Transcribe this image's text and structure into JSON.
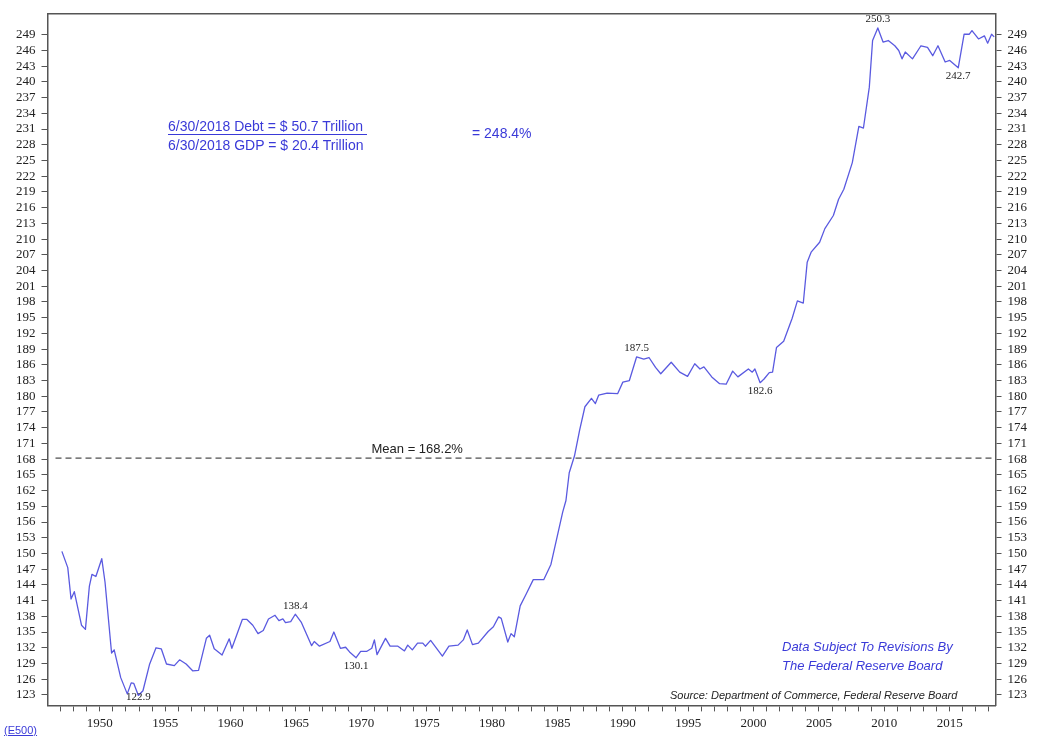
{
  "chart_data": {
    "type": "line",
    "x": [
      1947.1,
      1947.55,
      1947.8,
      1948.05,
      1948.6,
      1948.9,
      1949.2,
      1949.4,
      1949.7,
      1950.15,
      1950.4,
      1950.9,
      1951.1,
      1951.6,
      1952.1,
      1952.4,
      1952.6,
      1952.95,
      1953.3,
      1953.8,
      1954.3,
      1954.7,
      1955.1,
      1955.7,
      1956.1,
      1956.6,
      1957.1,
      1957.55,
      1958.15,
      1958.4,
      1958.75,
      1959.35,
      1959.9,
      1960.1,
      1960.9,
      1961.25,
      1961.7,
      1962.1,
      1962.5,
      1962.9,
      1963.4,
      1963.7,
      1964.0,
      1964.2,
      1964.6,
      1964.95,
      1965.4,
      1966.2,
      1966.4,
      1966.8,
      1967.6,
      1967.9,
      1968.4,
      1968.8,
      1969.1,
      1969.6,
      1969.95,
      1970.4,
      1970.8,
      1971.0,
      1971.2,
      1971.85,
      1972.2,
      1972.8,
      1973.3,
      1973.55,
      1973.9,
      1974.3,
      1974.7,
      1974.9,
      1975.3,
      1976.2,
      1976.7,
      1977.4,
      1977.8,
      1978.1,
      1978.5,
      1978.95,
      1979.7,
      1980.1,
      1980.5,
      1980.7,
      1981.2,
      1981.45,
      1981.7,
      1982.15,
      1982.6,
      1983.15,
      1983.95,
      1984.5,
      1985.4,
      1985.65,
      1985.9,
      1986.3,
      1986.7,
      1987.1,
      1987.6,
      1987.9,
      1988.15,
      1988.8,
      1989.6,
      1990.0,
      1990.5,
      1991.05,
      1991.6,
      1992.0,
      1992.5,
      1992.9,
      1993.7,
      1994.35,
      1994.95,
      1995.5,
      1995.9,
      1996.2,
      1996.8,
      1997.4,
      1997.9,
      1998.4,
      1998.8,
      1999.6,
      1999.9,
      2000.1,
      2000.5,
      2000.8,
      2001.2,
      2001.45,
      2001.75,
      2002.3,
      2002.95,
      2003.35,
      2003.8,
      2004.1,
      2004.4,
      2005.05,
      2005.45,
      2006.1,
      2006.5,
      2006.9,
      2007.55,
      2008.05,
      2008.4,
      2008.85,
      2009.1,
      2009.5,
      2009.9,
      2010.3,
      2010.8,
      2011.1,
      2011.35,
      2011.6,
      2012.15,
      2012.8,
      2013.3,
      2013.7,
      2014.1,
      2014.65,
      2015.0,
      2015.65,
      2016.1,
      2016.5,
      2016.7,
      2017.2,
      2017.65,
      2017.9,
      2018.2,
      2018.4
    ],
    "series": [
      {
        "color": "#5a5ae0",
        "values": [
          150.4,
          147.3,
          141.3,
          142.7,
          136.3,
          135.5,
          143.7,
          146,
          145.6,
          149,
          144.5,
          131,
          131.6,
          126.3,
          123.2,
          125.3,
          125.2,
          122.9,
          123.8,
          128.8,
          132,
          131.8,
          128.9,
          128.6,
          129.7,
          128.9,
          127.6,
          127.7,
          133.8,
          134.4,
          131.8,
          130.6,
          133.7,
          131.9,
          137.4,
          137.4,
          136.3,
          134.7,
          135.3,
          137.5,
          138.2,
          137.2,
          137.5,
          136.8,
          137,
          138.4,
          136.9,
          132.4,
          133.2,
          132.3,
          133.2,
          135,
          131.9,
          132.1,
          131.2,
          130.1,
          131.3,
          131.3,
          131.9,
          133.5,
          130.7,
          133.8,
          132.3,
          132.3,
          131.4,
          132.5,
          131.6,
          132.9,
          132.9,
          132.3,
          133.4,
          130.4,
          132.3,
          132.5,
          133.5,
          135.4,
          132.6,
          132.9,
          135.1,
          136,
          137.9,
          137.6,
          133.1,
          134.7,
          134.1,
          140,
          142.2,
          145,
          145,
          147.9,
          157.9,
          160.1,
          165.4,
          168.6,
          173.6,
          178,
          179.6,
          178.6,
          180.2,
          180.6,
          180.5,
          182.7,
          183,
          187.5,
          187.1,
          187.4,
          185.5,
          184.3,
          186.5,
          184.6,
          183.8,
          186.2,
          185.2,
          185.6,
          183.7,
          182.4,
          182.3,
          184.8,
          183.7,
          185.2,
          184.6,
          185.2,
          182.6,
          183.3,
          184.5,
          184.6,
          189.3,
          190.5,
          194.9,
          198.2,
          197.8,
          205.6,
          207.5,
          209.4,
          212,
          214.5,
          217.6,
          219.5,
          224.6,
          231.5,
          231.2,
          239,
          247.9,
          250.3,
          247.6,
          247.9,
          246.9,
          246,
          244.4,
          245.7,
          244.4,
          246.9,
          246.6,
          245,
          246.9,
          243.8,
          244.1,
          242.7,
          249.1,
          249.1,
          249.8,
          248.2,
          248.8,
          247.4,
          249.1,
          248.6
        ]
      }
    ],
    "xlim": [
      1946,
      2018.5
    ],
    "xticks": [
      {
        "value": 1947,
        "label": null
      },
      {
        "value": 1948,
        "label": null
      },
      {
        "value": 1949,
        "label": null
      },
      1950,
      {
        "value": 1951,
        "label": null
      },
      {
        "value": 1952,
        "label": null
      },
      {
        "value": 1953,
        "label": null
      },
      {
        "value": 1954,
        "label": null
      },
      1955,
      {
        "value": 1956,
        "label": null
      },
      {
        "value": 1957,
        "label": null
      },
      {
        "value": 1958,
        "label": null
      },
      {
        "value": 1959,
        "label": null
      },
      1960,
      {
        "value": 1961,
        "label": null
      },
      {
        "value": 1962,
        "label": null
      },
      {
        "value": 1963,
        "label": null
      },
      {
        "value": 1964,
        "label": null
      },
      1965,
      {
        "value": 1966,
        "label": null
      },
      {
        "value": 1967,
        "label": null
      },
      {
        "value": 1968,
        "label": null
      },
      {
        "value": 1969,
        "label": null
      },
      1970,
      {
        "value": 1971,
        "label": null
      },
      {
        "value": 1972,
        "label": null
      },
      {
        "value": 1973,
        "label": null
      },
      {
        "value": 1974,
        "label": null
      },
      1975,
      {
        "value": 1976,
        "label": null
      },
      {
        "value": 1977,
        "label": null
      },
      {
        "value": 1978,
        "label": null
      },
      {
        "value": 1979,
        "label": null
      },
      1980,
      {
        "value": 1981,
        "label": null
      },
      {
        "value": 1982,
        "label": null
      },
      {
        "value": 1983,
        "label": null
      },
      {
        "value": 1984,
        "label": null
      },
      1985,
      {
        "value": 1986,
        "label": null
      },
      {
        "value": 1987,
        "label": null
      },
      {
        "value": 1988,
        "label": null
      },
      {
        "value": 1989,
        "label": null
      },
      1990,
      {
        "value": 1991,
        "label": null
      },
      {
        "value": 1992,
        "label": null
      },
      {
        "value": 1993,
        "label": null
      },
      {
        "value": 1994,
        "label": null
      },
      1995,
      {
        "value": 1996,
        "label": null
      },
      {
        "value": 1997,
        "label": null
      },
      {
        "value": 1998,
        "label": null
      },
      {
        "value": 1999,
        "label": null
      },
      2000,
      {
        "value": 2001,
        "label": null
      },
      {
        "value": 2002,
        "label": null
      },
      {
        "value": 2003,
        "label": null
      },
      {
        "value": 2004,
        "label": null
      },
      2005,
      {
        "value": 2006,
        "label": null
      },
      {
        "value": 2007,
        "label": null
      },
      {
        "value": 2008,
        "label": null
      },
      {
        "value": 2009,
        "label": null
      },
      2010,
      {
        "value": 2011,
        "label": null
      },
      {
        "value": 2012,
        "label": null
      },
      {
        "value": 2013,
        "label": null
      },
      {
        "value": 2014,
        "label": null
      },
      2015,
      {
        "value": 2016,
        "label": null
      },
      {
        "value": 2017,
        "label": null
      },
      {
        "value": 2018,
        "label": null
      }
    ],
    "ylim": [
      121,
      253
    ],
    "yticks": [
      123,
      126,
      129,
      132,
      135,
      138,
      141,
      144,
      147,
      150,
      153,
      156,
      159,
      162,
      165,
      168,
      171,
      174,
      177,
      180,
      183,
      186,
      189,
      192,
      195,
      198,
      201,
      204,
      207,
      210,
      213,
      216,
      219,
      222,
      225,
      228,
      231,
      234,
      237,
      240,
      243,
      246,
      249
    ],
    "y2lim": [
      121,
      253
    ],
    "y2ticks": [
      123,
      126,
      129,
      132,
      135,
      138,
      141,
      144,
      147,
      150,
      153,
      156,
      159,
      162,
      165,
      168,
      171,
      174,
      177,
      180,
      183,
      186,
      189,
      192,
      195,
      198,
      201,
      204,
      207,
      210,
      213,
      216,
      219,
      222,
      225,
      228,
      231,
      234,
      237,
      240,
      243,
      246,
      249
    ],
    "ref_lines": [
      {
        "axis": "y",
        "value": 168.2,
        "label": "Mean = 168.2%",
        "color": "#222222",
        "line_style": "dashed"
      }
    ],
    "annotations": [
      "6/30/2018 Debt = $ 50.7 Trillion",
      "6/30/2018 GDP = $ 20.4 Trillion",
      "= 248.4%",
      "Data Subject To Revisions By",
      "The Federal Reserve Board",
      "Source: Department of Commerce, Federal Reserve Board",
      "(E500)",
      {
        "text": "122.9",
        "x": 1952.95,
        "y": 122.9
      },
      {
        "text": "138.4",
        "x": 1964.95,
        "y": 138.4
      },
      {
        "text": "130.1",
        "x": 1969.6,
        "y": 130.1
      },
      {
        "text": "187.5",
        "x": 1991.05,
        "y": 187.5
      },
      {
        "text": "182.6",
        "x": 2000.5,
        "y": 182.6
      },
      {
        "text": "250.3",
        "x": 2009.5,
        "y": 250.3
      },
      {
        "text": "242.7",
        "x": 2015.65,
        "y": 242.7
      }
    ],
    "grid": false,
    "legend": false,
    "marker": "none",
    "line_style": "solid"
  }
}
